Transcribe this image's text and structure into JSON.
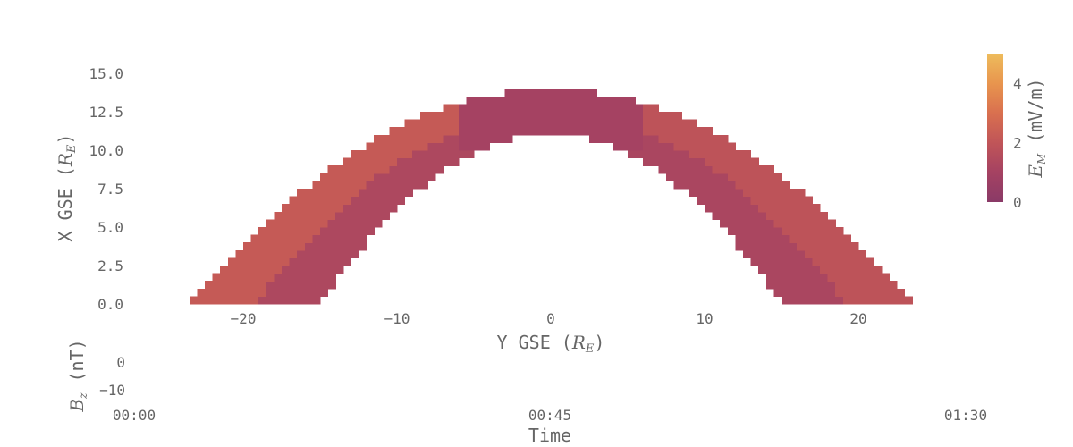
{
  "chart_data": [
    {
      "type": "heatmap",
      "xlabel": "Y GSE (R_E)",
      "xlabel_main": "Y GSE (",
      "xlabel_sym": "R",
      "xlabel_sub": "E",
      "xlabel_close": ")",
      "ylabel": "X GSE (R_E)",
      "ylabel_main": "X GSE (",
      "ylabel_sym": "R",
      "ylabel_sub": "E",
      "ylabel_close": ")",
      "xlim": [
        -24,
        24
      ],
      "ylim": [
        0,
        15
      ],
      "xticks": [
        -20,
        -10,
        0,
        10,
        20
      ],
      "xtick_labels": [
        "−20",
        "−10",
        "0",
        "10",
        "20"
      ],
      "yticks": [
        0,
        2.5,
        5,
        7.5,
        10,
        12.5,
        15
      ],
      "ytick_labels": [
        "0.0",
        "2.5",
        "5.0",
        "7.5",
        "10.0",
        "12.5",
        "15.0"
      ],
      "grid": false,
      "description_of_values": "Magnetosheath shell between inner and outer parabolic boundaries; values in mV/m",
      "x_bin_width": 0.5,
      "y_bin_width": 0.5,
      "inner_boundary": {
        "nose_x": 11,
        "y_at_x0": 15
      },
      "outer_boundary": {
        "nose_x": 14,
        "y_at_x0": 23.5
      },
      "field_values": {
        "flank_outer": 2.2,
        "flank_inner": 1.3,
        "nose": 1.0,
        "dusk_outer": 1.9,
        "dusk_inner": 1.2
      },
      "colorbar": {
        "label": "E_M (mV/m)",
        "label_sym": "E",
        "label_sub": "M",
        "label_rest": " (mV/m)",
        "range": [
          0,
          5
        ],
        "ticks": [
          0,
          2,
          4
        ],
        "tick_labels": [
          "0",
          "2",
          "4"
        ],
        "colors": [
          "#8a3a67",
          "#a54262",
          "#c05558",
          "#d9704f",
          "#e8954e",
          "#eebc5c"
        ]
      }
    },
    {
      "type": "line",
      "xlabel": "Time",
      "ylabel": "B_z (nT)",
      "ylabel_sym": "B",
      "ylabel_sub": "z",
      "ylabel_rest": " (nT)",
      "xtick_labels": [
        "00:00",
        "00:45",
        "01:30"
      ],
      "xticks_minutes": [
        0,
        45,
        90
      ],
      "xlim_minutes": [
        0,
        90
      ],
      "yticks": [
        0,
        -10
      ],
      "ytick_labels": [
        "0",
        "−10"
      ],
      "series": []
    }
  ]
}
